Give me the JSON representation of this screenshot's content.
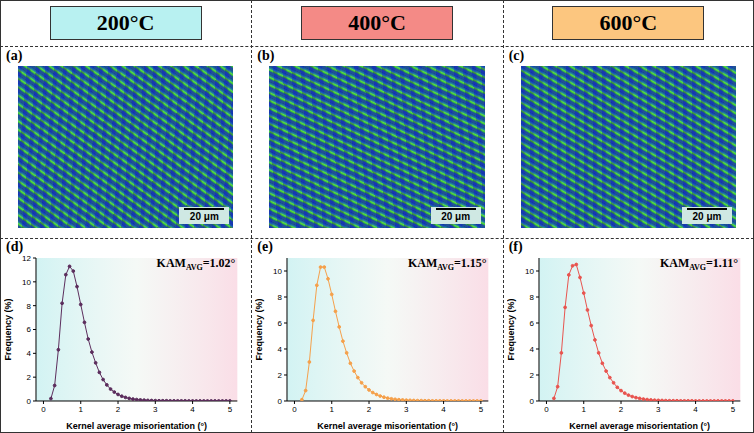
{
  "header": [
    {
      "text": "200°C",
      "color": "#b8f1f1"
    },
    {
      "text": "400°C",
      "color": "#f48a86"
    },
    {
      "text": "600°C",
      "color": "#fcc67f"
    }
  ],
  "maps": [
    {
      "letter": "(a)",
      "scale_bar": "20 μm"
    },
    {
      "letter": "(b)",
      "scale_bar": "20 μm"
    },
    {
      "letter": "(c)",
      "scale_bar": "20 μm"
    }
  ],
  "chart_data": [
    {
      "type": "line",
      "letter": "(d)",
      "annotation": {
        "main": "KAM",
        "sub": "AVG",
        "rest": "=1.02°"
      },
      "x_label": "Kernel average misorientation (°)",
      "y_label": "Frequency (%)",
      "color": "#5b2d5c",
      "marker": "circle",
      "grid": false,
      "xlim": [
        -0.2,
        5.2
      ],
      "xticks": [
        0,
        1,
        2,
        3,
        4,
        5
      ],
      "ylim": [
        0,
        12
      ],
      "yticks": [
        0,
        2,
        4,
        6,
        8,
        10,
        12
      ],
      "x": [
        0.2,
        0.3,
        0.4,
        0.5,
        0.6,
        0.7,
        0.8,
        0.9,
        1.0,
        1.1,
        1.2,
        1.3,
        1.4,
        1.5,
        1.6,
        1.7,
        1.8,
        1.9,
        2.0,
        2.1,
        2.2,
        2.3,
        2.4,
        2.5,
        2.6,
        2.7,
        2.8,
        2.9,
        3.0,
        3.1,
        3.2,
        3.3,
        3.4,
        3.5,
        3.6,
        3.7,
        3.8,
        3.9,
        4.0,
        4.1,
        4.2,
        4.3,
        4.4,
        4.5,
        4.6,
        4.7,
        4.8,
        4.9,
        5.0
      ],
      "values": [
        0.2,
        1.3,
        4.3,
        8.2,
        10.6,
        11.3,
        10.9,
        9.6,
        8.1,
        6.6,
        5.2,
        4.1,
        3.2,
        2.4,
        1.8,
        1.35,
        1.0,
        0.75,
        0.55,
        0.4,
        0.3,
        0.22,
        0.16,
        0.12,
        0.09,
        0.07,
        0.05,
        0.04,
        0.03,
        0.02,
        0.02,
        0.02,
        0.01,
        0.01,
        0.01,
        0.01,
        0.01,
        0,
        0,
        0,
        0,
        0,
        0,
        0,
        0,
        0,
        0,
        0,
        0
      ]
    },
    {
      "type": "line",
      "letter": "(e)",
      "annotation": {
        "main": "KAM",
        "sub": "AVG",
        "rest": "=1.15°"
      },
      "x_label": "Kernel average misorientation (°)",
      "y_label": "Frequency (%)",
      "color": "#f5a04a",
      "marker": "circle",
      "grid": false,
      "xlim": [
        -0.2,
        5.2
      ],
      "xticks": [
        0,
        1,
        2,
        3,
        4,
        5
      ],
      "ylim": [
        0,
        11
      ],
      "yticks": [
        0,
        2,
        4,
        6,
        8,
        10
      ],
      "x": [
        0.2,
        0.3,
        0.4,
        0.5,
        0.6,
        0.7,
        0.8,
        0.9,
        1.0,
        1.1,
        1.2,
        1.3,
        1.4,
        1.5,
        1.6,
        1.7,
        1.8,
        1.9,
        2.0,
        2.1,
        2.2,
        2.3,
        2.4,
        2.5,
        2.6,
        2.7,
        2.8,
        2.9,
        3.0,
        3.1,
        3.2,
        3.3,
        3.4,
        3.5,
        3.6,
        3.7,
        3.8,
        3.9,
        4.0,
        4.1,
        4.2,
        4.3,
        4.4,
        4.5,
        4.6,
        4.7,
        4.8,
        4.9,
        5.0
      ],
      "values": [
        0.1,
        0.8,
        3.0,
        6.2,
        8.9,
        10.3,
        10.3,
        9.4,
        8.2,
        6.9,
        5.7,
        4.6,
        3.7,
        2.9,
        2.3,
        1.8,
        1.4,
        1.1,
        0.85,
        0.65,
        0.5,
        0.38,
        0.29,
        0.22,
        0.17,
        0.13,
        0.1,
        0.08,
        0.06,
        0.05,
        0.04,
        0.03,
        0.03,
        0.02,
        0.02,
        0.01,
        0.01,
        0.01,
        0.01,
        0,
        0,
        0,
        0,
        0,
        0,
        0,
        0,
        0,
        0
      ]
    },
    {
      "type": "line",
      "letter": "(f)",
      "annotation": {
        "main": "KAM",
        "sub": "AVG",
        "rest": "=1.11°"
      },
      "x_label": "Kernel average misorientation (°)",
      "y_label": "Frequency (%)",
      "color": "#e8534e",
      "marker": "circle",
      "grid": false,
      "xlim": [
        -0.2,
        5.2
      ],
      "xticks": [
        0,
        1,
        2,
        3,
        4,
        5
      ],
      "ylim": [
        0,
        11
      ],
      "yticks": [
        0,
        2,
        4,
        6,
        8,
        10
      ],
      "x": [
        0.2,
        0.3,
        0.4,
        0.5,
        0.6,
        0.7,
        0.8,
        0.9,
        1.0,
        1.1,
        1.2,
        1.3,
        1.4,
        1.5,
        1.6,
        1.7,
        1.8,
        1.9,
        2.0,
        2.1,
        2.2,
        2.3,
        2.4,
        2.5,
        2.6,
        2.7,
        2.8,
        2.9,
        3.0,
        3.1,
        3.2,
        3.3,
        3.4,
        3.5,
        3.6,
        3.7,
        3.8,
        3.9,
        4.0,
        4.1,
        4.2,
        4.3,
        4.4,
        4.5,
        4.6,
        4.7,
        4.8,
        4.9,
        5.0
      ],
      "values": [
        0.2,
        1.1,
        3.7,
        7.2,
        9.7,
        10.4,
        10.5,
        9.5,
        8.3,
        7.0,
        5.8,
        4.7,
        3.7,
        2.9,
        2.3,
        1.8,
        1.4,
        1.05,
        0.8,
        0.6,
        0.45,
        0.34,
        0.26,
        0.2,
        0.15,
        0.11,
        0.08,
        0.06,
        0.05,
        0.04,
        0.03,
        0.02,
        0.02,
        0.02,
        0.01,
        0.01,
        0.01,
        0.01,
        0,
        0,
        0,
        0,
        0,
        0,
        0,
        0,
        0,
        0,
        0
      ]
    }
  ]
}
